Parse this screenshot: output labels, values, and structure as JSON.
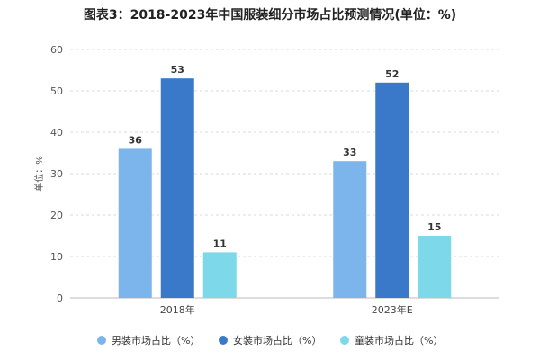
{
  "chart_data": {
    "type": "bar",
    "title": "图表3：2018-2023年中国服装细分市场占比预测情况(单位：%)",
    "ylabel": "单位：%",
    "ylim": [
      0,
      60
    ],
    "yticks": [
      0,
      10,
      20,
      30,
      40,
      50,
      60
    ],
    "categories": [
      "2018年",
      "2023年E"
    ],
    "series": [
      {
        "name": "男装市场占比（%）",
        "values": [
          36,
          33
        ],
        "color": "#7cb5ec"
      },
      {
        "name": "女装市场占比（%）",
        "values": [
          53,
          52
        ],
        "color": "#3a78c9"
      },
      {
        "name": "童装市场占比（%）",
        "values": [
          11,
          15
        ],
        "color": "#7dd8ea"
      }
    ],
    "grid": "horizontal dashed",
    "legend_position": "bottom"
  }
}
